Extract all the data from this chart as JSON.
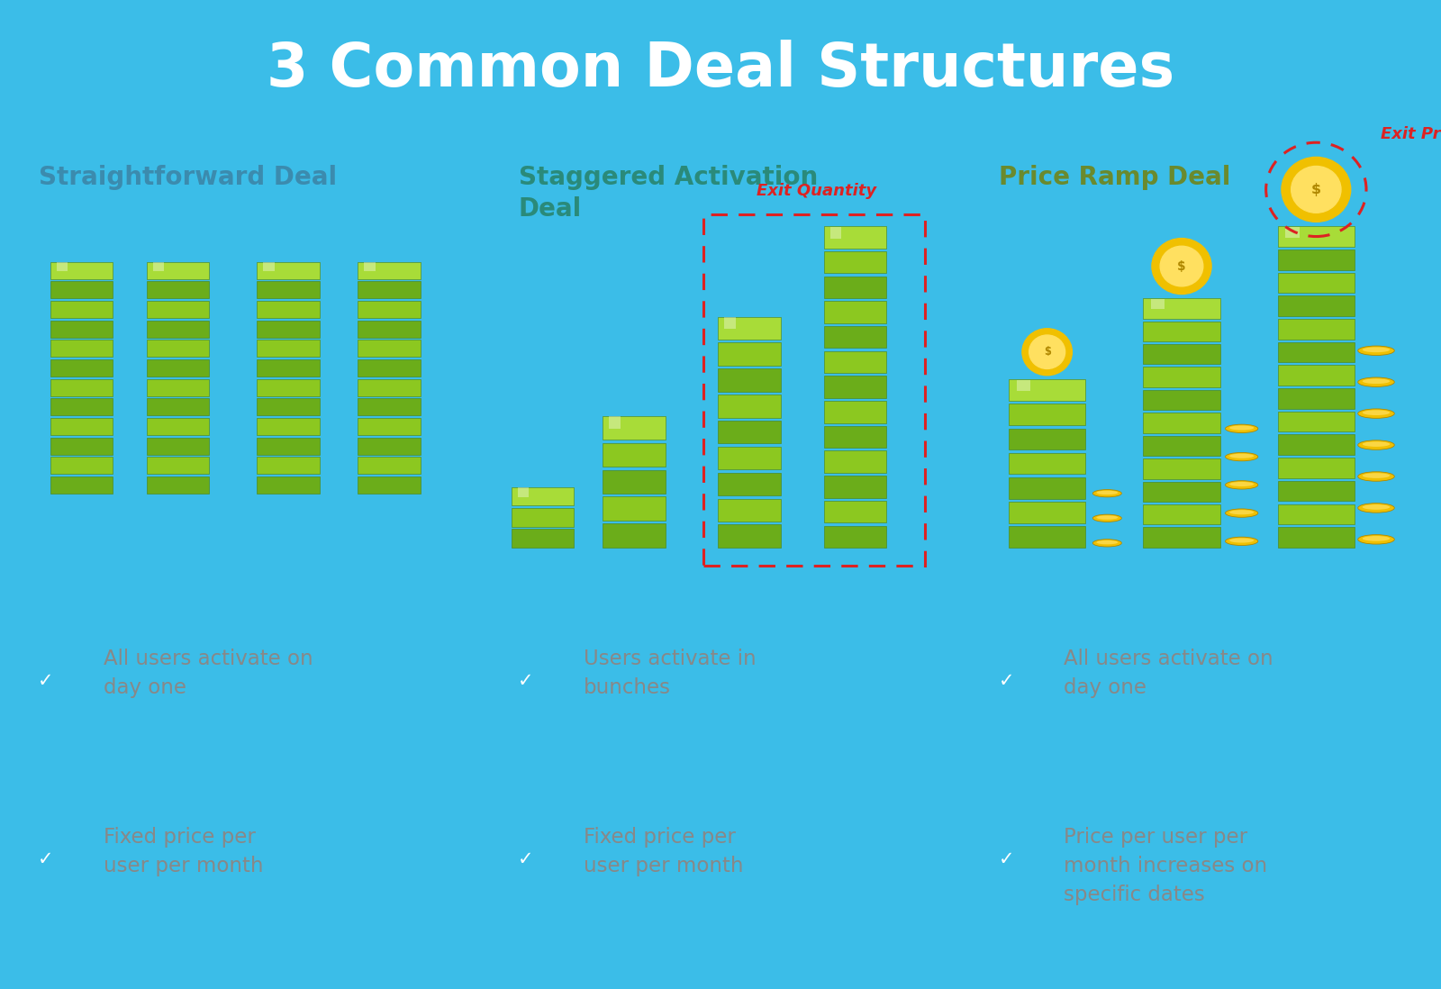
{
  "title": "3 Common Deal Structures",
  "title_bg_color": "#3BBDE8",
  "title_text_color": "#FFFFFF",
  "title_fontsize": 48,
  "col_titles": [
    "Straightforward Deal",
    "Staggered Activation\nDeal",
    "Price Ramp Deal"
  ],
  "col_title_colors": [
    "#3B8BAE",
    "#2A8A7A",
    "#6A8A2E"
  ],
  "col_top_bg_colors": [
    "#C8D4EC",
    "#C0DDD8",
    "#D8EAB8"
  ],
  "col_bottom_bg_colors": [
    "#9AAED0",
    "#9AC4BE",
    "#B8D898"
  ],
  "bullet_icon_color": "#3BBDE8",
  "bullet_text_color": "#888888",
  "bullet_points": [
    [
      "All users activate on\nday one",
      "Fixed price per\nuser per month"
    ],
    [
      "Users activate in\nbunches",
      "Fixed price per\nuser per month"
    ],
    [
      "All users activate on\nday one",
      "Price per user per\nmonth increases on\nspecific dates"
    ]
  ],
  "exit_quantity_label": "Exit Quantity",
  "exit_price_label": "Exit Price",
  "label_color": "#DD2222",
  "bar_green_dark": "#6BAD1A",
  "bar_green_mid": "#8CC820",
  "bar_green_light": "#A8DC38",
  "bar_edge": "#4A8010",
  "coin_outer": "#F0C000",
  "coin_inner": "#FFE060",
  "coin_text": "#B08800"
}
